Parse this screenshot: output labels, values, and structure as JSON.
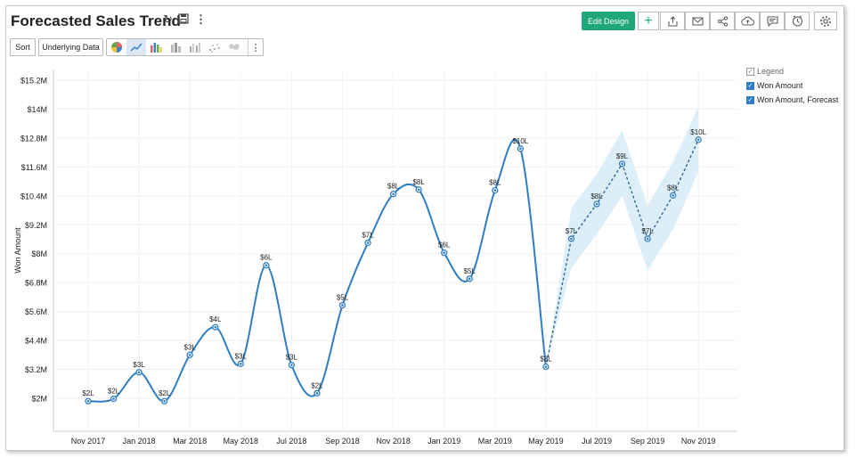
{
  "title": "Forecasted Sales Trend",
  "toolbar": {
    "sort_label": "Sort",
    "underlying_label": "Underlying Data",
    "edit_label": "Edit Design"
  },
  "legend": {
    "title": "Legend",
    "items": [
      "Won Amount",
      "Won Amount, Forecast"
    ]
  },
  "colors": {
    "line": "#2f7dc3",
    "band": "#dceff9",
    "accent": "#1fa67a"
  },
  "chart_data": {
    "type": "line",
    "ylabel": "Won Amount",
    "yticks": [
      "$2M",
      "$3.2M",
      "$4.4M",
      "$5.6M",
      "$6.8M",
      "$8M",
      "$9.2M",
      "$10.4M",
      "$11.6M",
      "$12.8M",
      "$14M",
      "$15.2M"
    ],
    "ylim": [
      0.86,
      15.2
    ],
    "xticks": [
      {
        "i": 0,
        "label": "Nov 2017"
      },
      {
        "i": 2,
        "label": "Jan 2018"
      },
      {
        "i": 4,
        "label": "Mar 2018"
      },
      {
        "i": 6,
        "label": "May 2018"
      },
      {
        "i": 8,
        "label": "Jul 2018"
      },
      {
        "i": 10,
        "label": "Sep 2018"
      },
      {
        "i": 12,
        "label": "Nov 2018"
      },
      {
        "i": 14,
        "label": "Jan 2019"
      },
      {
        "i": 16,
        "label": "Mar 2019"
      },
      {
        "i": 18,
        "label": "May 2019"
      },
      {
        "i": 20,
        "label": "Jul 2019"
      },
      {
        "i": 22,
        "label": "Sep 2019"
      },
      {
        "i": 24,
        "label": "Nov 2019"
      }
    ],
    "series": [
      {
        "name": "Won Amount",
        "points": [
          {
            "i": 0,
            "y": 1.88,
            "label": "$2L"
          },
          {
            "i": 1,
            "y": 1.98,
            "label": "$2L"
          },
          {
            "i": 2,
            "y": 3.08,
            "label": "$3L"
          },
          {
            "i": 3,
            "y": 1.88,
            "label": "$2L"
          },
          {
            "i": 4,
            "y": 3.8,
            "label": "$3L"
          },
          {
            "i": 5,
            "y": 4.95,
            "label": "$4L"
          },
          {
            "i": 6,
            "y": 3.43,
            "label": "$3L"
          },
          {
            "i": 7,
            "y": 7.52,
            "label": "$6L"
          },
          {
            "i": 8,
            "y": 3.38,
            "label": "$3L"
          },
          {
            "i": 9,
            "y": 2.21,
            "label": "$2L"
          },
          {
            "i": 10,
            "y": 5.86,
            "label": "$5L"
          },
          {
            "i": 11,
            "y": 8.45,
            "label": "$7L"
          },
          {
            "i": 12,
            "y": 10.48,
            "label": "$8L"
          },
          {
            "i": 13,
            "y": 10.66,
            "label": "$8L"
          },
          {
            "i": 14,
            "y": 8.04,
            "label": "$6L"
          },
          {
            "i": 15,
            "y": 6.96,
            "label": "$5L"
          },
          {
            "i": 16,
            "y": 10.63,
            "label": "$8L"
          },
          {
            "i": 17,
            "y": 12.36,
            "label": "$10L"
          },
          {
            "i": 18,
            "y": 3.31,
            "label": "$3L"
          }
        ]
      },
      {
        "name": "Won Amount, Forecast",
        "points": [
          {
            "i": 18,
            "y": 3.31,
            "label": ""
          },
          {
            "i": 19,
            "y": 8.62,
            "label": "$7L"
          },
          {
            "i": 20,
            "y": 10.06,
            "label": "$8L"
          },
          {
            "i": 21,
            "y": 11.73,
            "label": "$9L"
          },
          {
            "i": 22,
            "y": 8.62,
            "label": "$7L"
          },
          {
            "i": 23,
            "y": 10.42,
            "label": "$8L"
          },
          {
            "i": 24,
            "y": 12.73,
            "label": "$10L"
          }
        ],
        "upper": [
          3.31,
          9.9,
          11.3,
          13.1,
          10.0,
          11.8,
          14.1
        ],
        "lower": [
          3.31,
          7.4,
          8.8,
          10.4,
          7.3,
          9.0,
          11.4
        ]
      }
    ],
    "grid": true,
    "legend_position": "top-right"
  }
}
